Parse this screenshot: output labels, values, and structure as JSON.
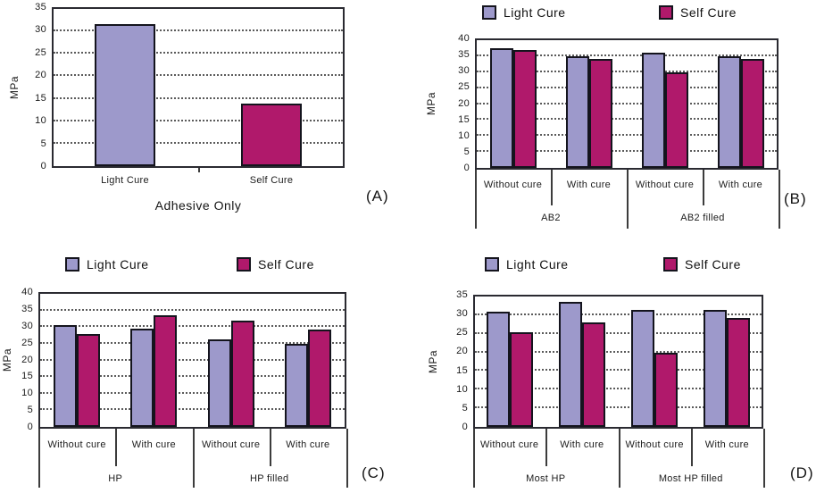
{
  "legend": {
    "light_label": "Light Cure",
    "self_label": "Self Cure"
  },
  "colors": {
    "light_cure": "#9d99cb",
    "self_cure": "#b0196b",
    "bar_border": "#14141d",
    "axis": "#2a2a31",
    "grid": "#5a5a5a"
  },
  "chart_data": [
    {
      "id": "A",
      "type": "bar",
      "panel_label": "(A)",
      "title": "Adhesive Only",
      "ylabel": "MPa",
      "ylim": [
        0,
        35
      ],
      "ystep": 5,
      "grid": "horizontal-dotted",
      "legend_position": "none",
      "categories": [
        "Light Cure",
        "Self Cure"
      ],
      "values": [
        31.7,
        14
      ],
      "bar_colors": [
        "light_cure",
        "self_cure"
      ]
    },
    {
      "id": "B",
      "type": "bar",
      "panel_label": "(B)",
      "ylabel": "MPa",
      "ylim": [
        0,
        40
      ],
      "ystep": 5,
      "grid": "horizontal-dotted",
      "legend_position": "top",
      "group_labels": [
        "AB2",
        "AB2 filled"
      ],
      "categories": [
        "Without cure",
        "With cure",
        "Without cure",
        "With cure"
      ],
      "series": [
        {
          "name": "Light Cure",
          "color_key": "light_cure",
          "values": [
            37.5,
            35,
            36.2,
            35
          ]
        },
        {
          "name": "Self Cure",
          "color_key": "self_cure",
          "values": [
            37,
            34,
            30,
            34
          ]
        }
      ]
    },
    {
      "id": "C",
      "type": "bar",
      "panel_label": "(C)",
      "ylabel": "MPa",
      "ylim": [
        0,
        40
      ],
      "ystep": 5,
      "grid": "horizontal-dotted",
      "legend_position": "top",
      "group_labels": [
        "HP",
        "HP filled"
      ],
      "categories": [
        "Without cure",
        "With cure",
        "Without cure",
        "With cure"
      ],
      "series": [
        {
          "name": "Light Cure",
          "color_key": "light_cure",
          "values": [
            30.5,
            29.5,
            26.2,
            25
          ]
        },
        {
          "name": "Self Cure",
          "color_key": "self_cure",
          "values": [
            28,
            33.5,
            32,
            29.2
          ]
        }
      ]
    },
    {
      "id": "D",
      "type": "bar",
      "panel_label": "(D)",
      "ylabel": "MPa",
      "ylim": [
        0,
        35
      ],
      "ystep": 5,
      "grid": "horizontal-dotted",
      "legend_position": "top",
      "group_labels": [
        "Most HP",
        "Most HP filled"
      ],
      "categories": [
        "Without cure",
        "With cure",
        "Without cure",
        "With cure"
      ],
      "series": [
        {
          "name": "Light Cure",
          "color_key": "light_cure",
          "values": [
            31,
            33.5,
            31.3,
            31.3
          ]
        },
        {
          "name": "Self Cure",
          "color_key": "self_cure",
          "values": [
            25.5,
            28,
            20,
            29.3
          ]
        }
      ]
    }
  ]
}
